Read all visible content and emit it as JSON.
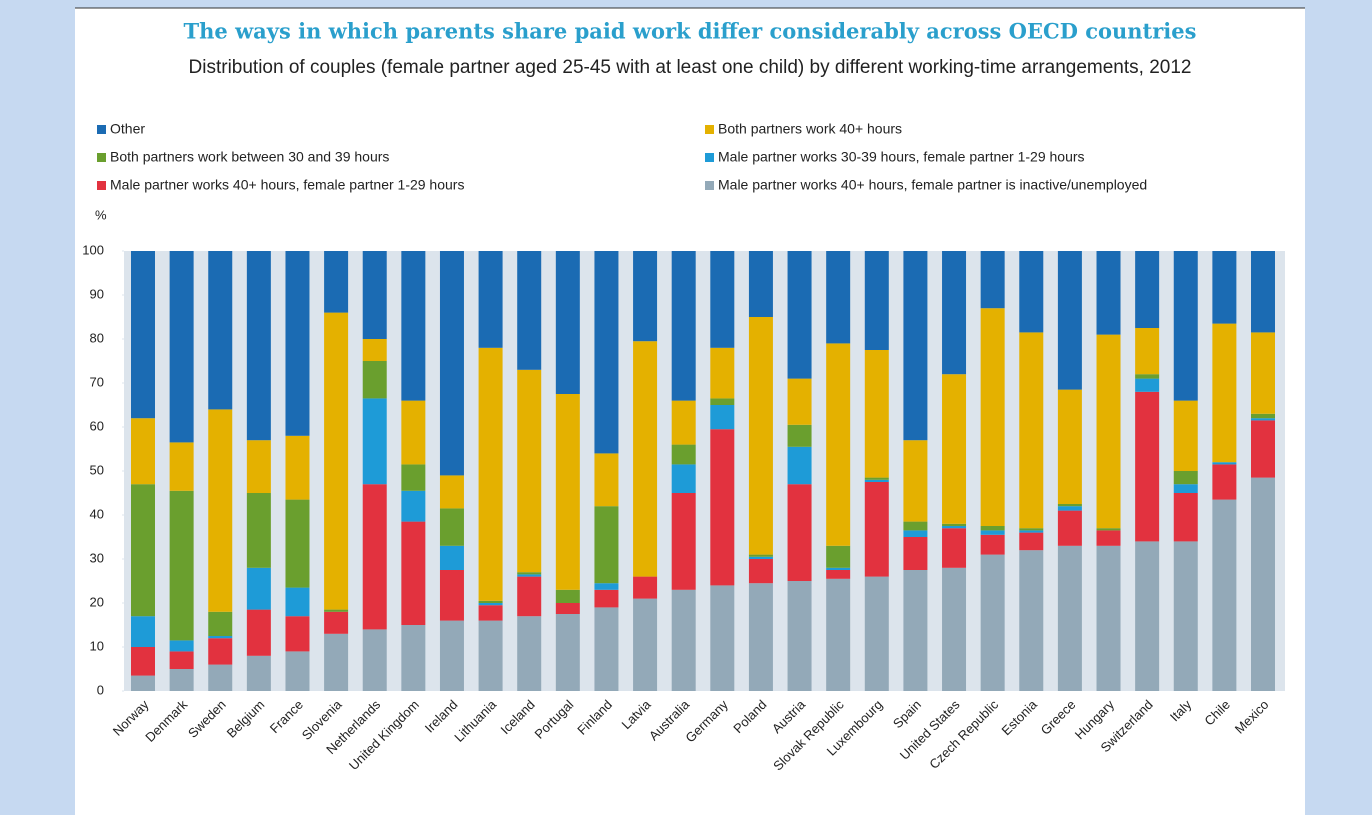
{
  "chart_data": {
    "type": "stacked_bar",
    "title": "The ways in which parents share paid work differ considerably across OECD countries",
    "subtitle": "Distribution of couples (female partner aged 25-45 with at least one child) by different working-time arrangements, 2012",
    "y_label": "%",
    "categories": [
      "Norway",
      "Denmark",
      "Sweden",
      "Belgium",
      "France",
      "Slovenia",
      "Netherlands",
      "United Kingdom",
      "Ireland",
      "Lithuania",
      "Iceland",
      "Portugal",
      "Finland",
      "Latvia",
      "Australia",
      "Germany",
      "Poland",
      "Austria",
      "Slovak Republic",
      "Luxembourg",
      "Spain",
      "United States",
      "Czech Republic",
      "Estonia",
      "Greece",
      "Hungary",
      "Switzerland",
      "Italy",
      "Chile",
      "Mexico"
    ],
    "series": [
      {
        "name": "Male partner works 40+ hours, female partner is inactive/unemployed",
        "color": "#93a9b8",
        "values": [
          3.5,
          5,
          6,
          8,
          9,
          13,
          14,
          15,
          16,
          16,
          17,
          17.5,
          19,
          21,
          23,
          24,
          24.5,
          25,
          25.5,
          26,
          27.5,
          28,
          31,
          32,
          33,
          33,
          34,
          34,
          43.5,
          48.5
        ]
      },
      {
        "name": "Male partner works 40+ hours, female partner 1-29 hours",
        "color": "#e2323f",
        "values": [
          6.5,
          4,
          6,
          10.5,
          8,
          5,
          33,
          23.5,
          11.5,
          3.5,
          9,
          2.5,
          4,
          5,
          22,
          35.5,
          5.5,
          22,
          2,
          21.5,
          7.5,
          9,
          4.5,
          4,
          8,
          3.5,
          34,
          11,
          8,
          13
        ]
      },
      {
        "name": "Male partner works 30-39 hours, female partner 1-29 hours",
        "color": "#1e9bd7",
        "values": [
          7,
          2.5,
          0.5,
          9.5,
          6.5,
          0,
          19.5,
          7,
          5.5,
          0.5,
          0.5,
          0,
          1.5,
          0,
          6.5,
          5.5,
          0.5,
          8.5,
          0.5,
          0.5,
          1.5,
          0.5,
          1,
          0.5,
          1,
          0,
          3,
          2,
          0.5,
          0.5
        ]
      },
      {
        "name": "Both partners work between 30 and 39 hours",
        "color": "#6a9f2e",
        "values": [
          30,
          34,
          5.5,
          17,
          20,
          0.5,
          8.5,
          6,
          8.5,
          0.5,
          0.5,
          3,
          17.5,
          0,
          4.5,
          1.5,
          0.5,
          5,
          5,
          0.5,
          2,
          0.5,
          1,
          0.5,
          0.5,
          0.5,
          1,
          3,
          0,
          1
        ]
      },
      {
        "name": "Both partners work 40+ hours",
        "color": "#e4b100",
        "values": [
          15,
          11,
          46,
          12,
          14.5,
          67.5,
          5,
          14.5,
          7.5,
          57.5,
          46,
          44.5,
          12,
          53.5,
          10,
          11.5,
          54,
          10.5,
          46,
          29,
          18.5,
          34,
          49.5,
          44.5,
          26,
          44,
          10.5,
          16,
          31.5,
          18.5
        ]
      },
      {
        "name": "Other",
        "color": "#1b6bb3",
        "values": [
          38,
          43.5,
          36,
          43,
          42,
          14,
          20,
          34,
          51,
          22,
          27,
          32.5,
          46,
          20.5,
          34,
          22,
          15,
          29,
          21,
          22.5,
          43,
          28,
          13,
          18.5,
          31.5,
          19,
          17.5,
          34,
          16.5,
          18.5
        ]
      }
    ],
    "ylim": [
      0,
      100
    ],
    "yticks": [
      0,
      10,
      20,
      30,
      40,
      50,
      60,
      70,
      80,
      90,
      100
    ]
  }
}
